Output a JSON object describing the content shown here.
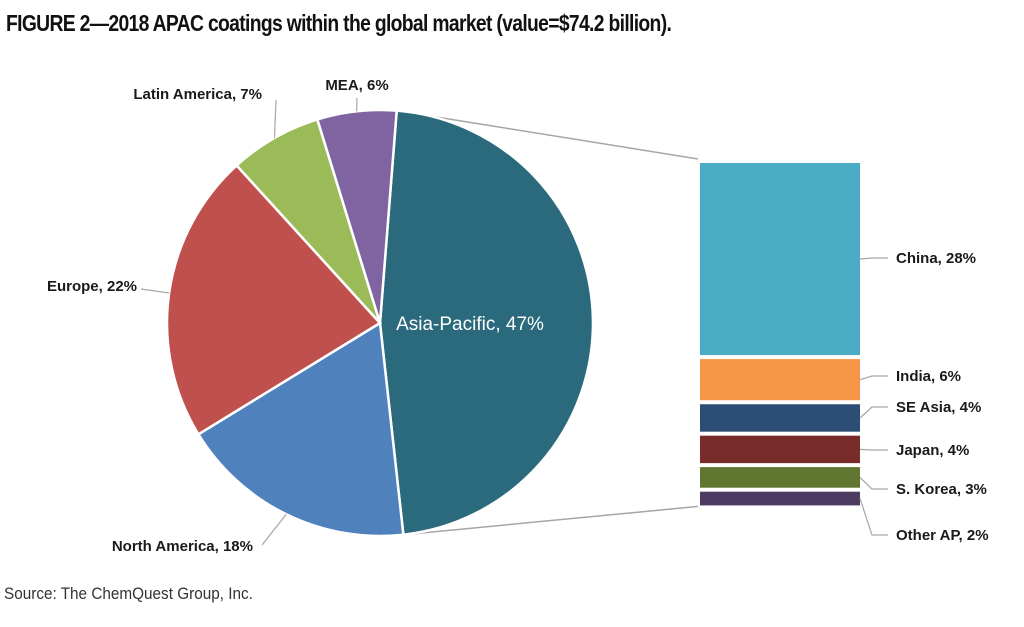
{
  "title": "FIGURE 2—2018 APAC coatings within the global market (value=$74.2 billion).",
  "source": "Source: The ChemQuest Group, Inc.",
  "chart_data": [
    {
      "type": "pie",
      "slices": [
        {
          "label": "Asia-Pacific, 47%",
          "category": "Asia-Pacific",
          "value": 47,
          "color": "#2a6a7c"
        },
        {
          "label": "North America, 18%",
          "category": "North America",
          "value": 18,
          "color": "#4f81bd"
        },
        {
          "label": "Europe, 22%",
          "category": "Europe",
          "value": 22,
          "color": "#c0504d"
        },
        {
          "label": "Latin America, 7%",
          "category": "Latin America",
          "value": 7,
          "color": "#9bbb59"
        },
        {
          "label": "MEA, 6%",
          "category": "MEA",
          "value": 6,
          "color": "#8064a2"
        }
      ]
    },
    {
      "type": "bar",
      "stacked": true,
      "segments": [
        {
          "label": "China, 28%",
          "category": "China",
          "value": 28,
          "color": "#4bacc6"
        },
        {
          "label": "India, 6%",
          "category": "India",
          "value": 6,
          "color": "#f79646"
        },
        {
          "label": "SE Asia, 4%",
          "category": "SE Asia",
          "value": 4,
          "color": "#2c4d75"
        },
        {
          "label": "Japan, 4%",
          "category": "Japan",
          "value": 4,
          "color": "#772c2a"
        },
        {
          "label": "S. Korea, 3%",
          "category": "S. Korea",
          "value": 3,
          "color": "#5f7530"
        },
        {
          "label": "Other AP, 2%",
          "category": "Other AP",
          "value": 2,
          "color": "#4d3b62"
        }
      ]
    }
  ]
}
